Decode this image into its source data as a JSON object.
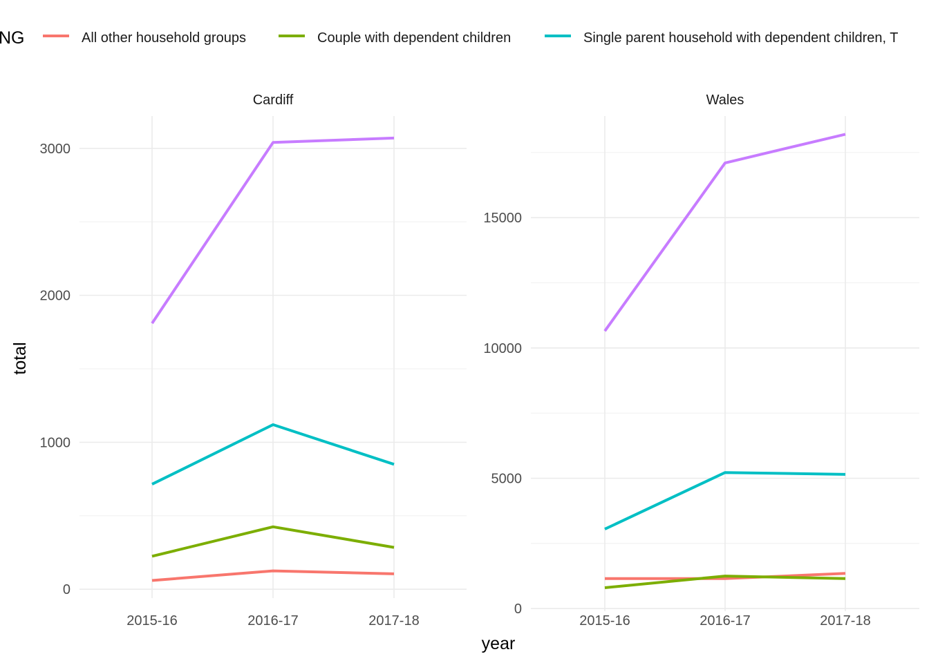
{
  "chart_data": {
    "type": "line",
    "legend": {
      "title": "NG",
      "position": "top",
      "entries": [
        {
          "name": "All other household groups",
          "color": "#F8766D"
        },
        {
          "name": "Couple with dependent children",
          "color": "#7CAE00"
        },
        {
          "name": "Single parent household with dependent children, T",
          "color": "#00BFC4"
        }
      ]
    },
    "xlabel": "year",
    "ylabel": "total",
    "grid": true,
    "categories": [
      "2015-16",
      "2016-17",
      "2017-18"
    ],
    "panels": [
      {
        "title": "Cardiff",
        "ylim": [
          -60,
          3220
        ],
        "yticks": [
          0,
          1000,
          2000,
          3000
        ],
        "ytick_labels": [
          "0",
          "1000",
          "2000",
          "3000"
        ],
        "series": [
          {
            "color": "#C77CFF",
            "values": [
              1810,
              3040,
              3070
            ]
          },
          {
            "color": "#00BFC4",
            "values": [
              715,
              1120,
              850
            ]
          },
          {
            "color": "#7CAE00",
            "values": [
              225,
              425,
              285
            ]
          },
          {
            "color": "#F8766D",
            "values": [
              60,
              125,
              105
            ]
          }
        ]
      },
      {
        "title": "Wales",
        "ylim": [
          -100,
          18900
        ],
        "yticks": [
          0,
          5000,
          10000,
          15000
        ],
        "ytick_labels": [
          "0",
          "5000",
          "10000",
          "15000"
        ],
        "series": [
          {
            "color": "#C77CFF",
            "values": [
              10650,
              17100,
              18200
            ]
          },
          {
            "color": "#00BFC4",
            "values": [
              3050,
              5220,
              5150
            ]
          },
          {
            "color": "#F8766D",
            "values": [
              1150,
              1150,
              1350
            ]
          },
          {
            "color": "#7CAE00",
            "values": [
              800,
              1250,
              1150
            ]
          }
        ]
      }
    ]
  }
}
